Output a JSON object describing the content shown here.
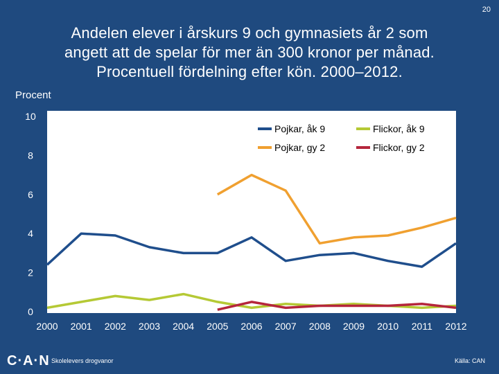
{
  "page_number": "20",
  "footer": {
    "logo": "C·A·N",
    "left_text": "Skolelevers drogvanor",
    "source": "Källa: CAN"
  },
  "chart_data": {
    "type": "line",
    "title": [
      "Andelen elever i årskurs 9 och gymnasiets år 2 som",
      "angett att de spelar för mer än 300 kronor per månad.",
      "Procentuell fördelning efter kön. 2000–2012."
    ],
    "ylabel": "Procent",
    "xlabel": "",
    "x": [
      "2000",
      "2001",
      "2002",
      "2003",
      "2004",
      "2005",
      "2006",
      "2007",
      "2008",
      "2009",
      "2010",
      "2011",
      "2012"
    ],
    "ylim": [
      0,
      10
    ],
    "yticks": [
      "0",
      "2",
      "4",
      "6",
      "8",
      "10"
    ],
    "grid": false,
    "legend_position": "top-right",
    "series": [
      {
        "name": "Pojkar, åk 9",
        "color": "#1f4e8c",
        "values": [
          2.4,
          4.0,
          3.9,
          3.3,
          3.0,
          3.0,
          3.8,
          2.6,
          2.9,
          3.0,
          2.6,
          2.3,
          3.5
        ]
      },
      {
        "name": "Flickor, åk 9",
        "color": "#b5c935",
        "values": [
          0.2,
          0.5,
          0.8,
          0.6,
          0.9,
          0.5,
          0.2,
          0.4,
          0.3,
          0.4,
          0.3,
          0.2,
          0.3
        ]
      },
      {
        "name": "Pojkar, gy 2",
        "color": "#f0a030",
        "values": [
          null,
          null,
          null,
          null,
          null,
          6.0,
          7.0,
          6.2,
          3.5,
          3.8,
          3.9,
          4.3,
          4.8
        ]
      },
      {
        "name": "Flickor, gy 2",
        "color": "#b5263c",
        "values": [
          null,
          null,
          null,
          null,
          null,
          0.1,
          0.5,
          0.2,
          0.3,
          0.3,
          0.3,
          0.4,
          0.2
        ]
      }
    ]
  }
}
